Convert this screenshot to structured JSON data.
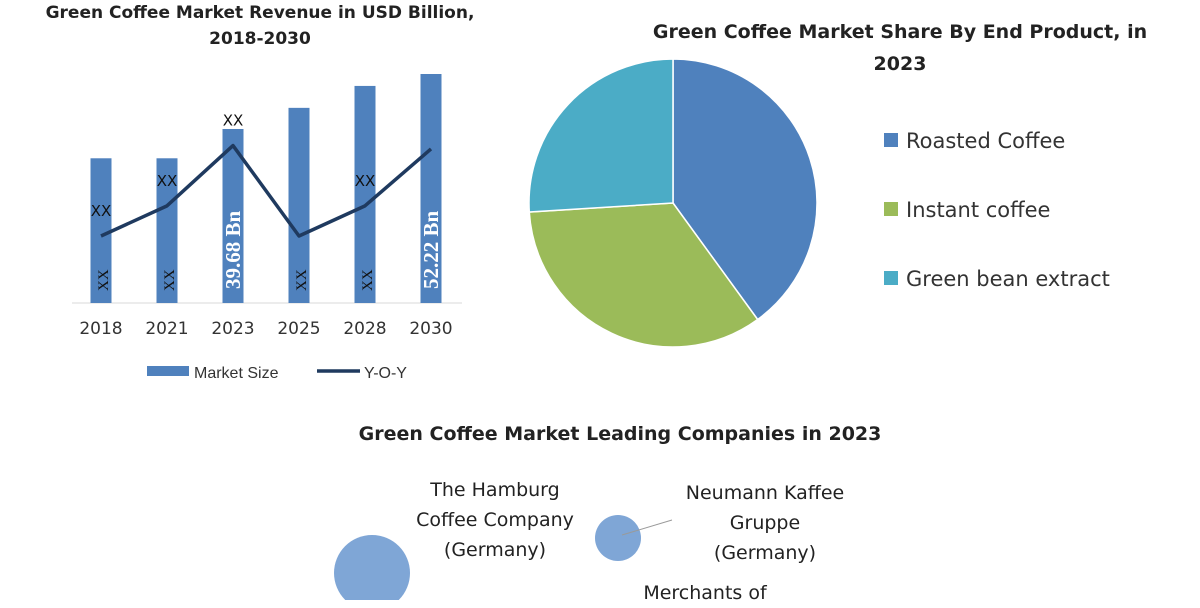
{
  "chart_data": [
    {
      "type": "bar",
      "title": "Green Coffee Market Revenue in USD Billion, 2018-2030",
      "categories": [
        "2018",
        "2021",
        "2023",
        "2025",
        "2028",
        "2030"
      ],
      "series": [
        {
          "name": "Market Size",
          "values": [
            33.0,
            33.0,
            39.68,
            44.5,
            49.5,
            52.22
          ],
          "labels": [
            "XX",
            "XX",
            "39.68 Bn",
            "XX",
            "XX",
            "52.22 Bn"
          ]
        },
        {
          "name": "Y-O-Y",
          "values": [
            10.0,
            14.5,
            23.5,
            10.0,
            14.5,
            23.0
          ],
          "labels": [
            "XX",
            "XX",
            "XX",
            "",
            "XX",
            ""
          ]
        }
      ],
      "colors": {
        "bar": "#4f81bd",
        "line": "#1f3a5f"
      }
    },
    {
      "type": "pie",
      "title": "Green Coffee Market Share By End Product, in 2023",
      "categories": [
        "Roasted Coffee",
        "Instant coffee",
        "Green bean extract"
      ],
      "values": [
        40,
        34,
        26
      ],
      "colors": [
        "#4f81bd",
        "#9bbb59",
        "#4bacc6"
      ]
    }
  ],
  "companies": {
    "title": "Green Coffee Market Leading Companies in 2023",
    "items": [
      {
        "line1": "The Hamburg",
        "line2": "Coffee Company",
        "line3": "(Germany)"
      },
      {
        "line1": "Neumann Kaffee",
        "line2": "Gruppe",
        "line3": "(Germany)"
      },
      {
        "line1": "Merchants of",
        "line2": "",
        "line3": ""
      }
    ],
    "bubble_color": "#7fa6d6"
  }
}
